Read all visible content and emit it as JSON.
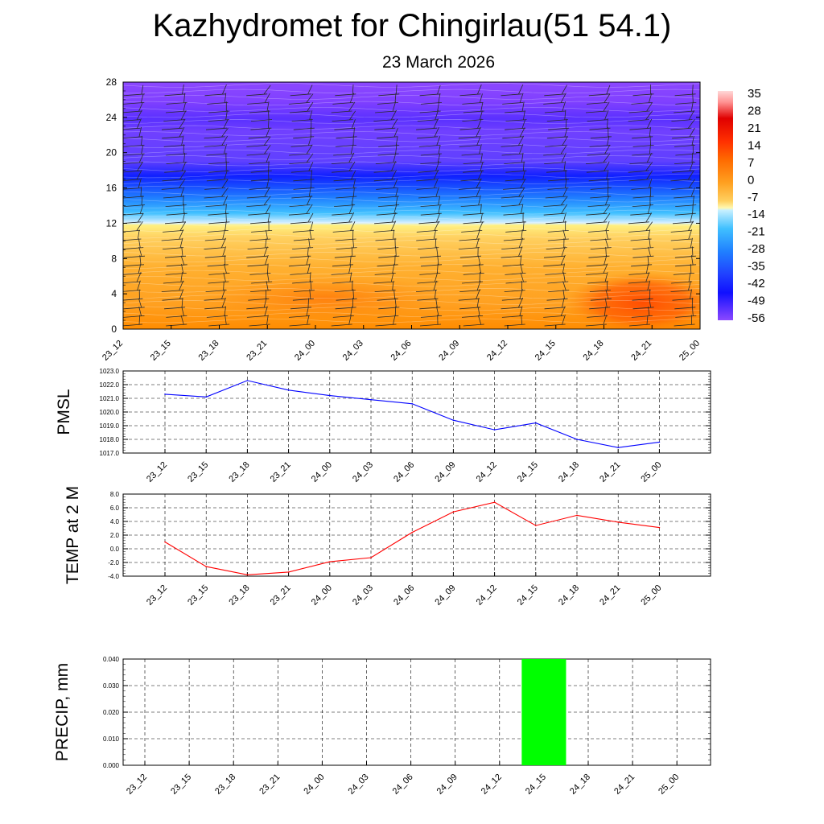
{
  "header": {
    "title": "Kazhydromet for Chingirlau(51 54.1)",
    "subtitle": "23 March 2026"
  },
  "chart_data": [
    {
      "type": "heatmap",
      "x_ticks": [
        "23_12",
        "23_15",
        "23_18",
        "23_21",
        "24_00",
        "24_03",
        "24_06",
        "24_09",
        "24_12",
        "24_15",
        "24_18",
        "24_21",
        "25_00"
      ],
      "y_ticks": [
        0,
        4,
        8,
        12,
        16,
        20,
        24,
        28
      ],
      "ylim": [
        0,
        28
      ],
      "colorbar_labels": [
        "35",
        "28",
        "21",
        "14",
        "7",
        "0",
        "-7",
        "-14",
        "-21",
        "-28",
        "-35",
        "-42",
        "-49",
        "-56"
      ],
      "wind_barbs": true,
      "colors": {
        "warm": "#ff9a10",
        "hot": "#ff5a00",
        "cold": "#1a2bff",
        "upper": "#8840ff"
      }
    },
    {
      "type": "line",
      "ylabel": "PMSL",
      "x": [
        "23_12",
        "23_15",
        "23_18",
        "23_21",
        "24_00",
        "24_03",
        "24_06",
        "24_09",
        "24_12",
        "24_15",
        "24_18",
        "24_21",
        "25_00"
      ],
      "values": [
        1021.3,
        1021.1,
        1022.3,
        1021.6,
        1021.2,
        1020.9,
        1020.6,
        1019.4,
        1018.7,
        1019.2,
        1018.0,
        1017.4,
        1017.8
      ],
      "ylim": [
        1017.0,
        1023.0
      ],
      "y_ticks": [
        "1017.0",
        "1018.0",
        "1019.0",
        "1020.0",
        "1021.0",
        "1022.0",
        "1023.0"
      ],
      "color": "#0000ff",
      "grid": true
    },
    {
      "type": "line",
      "ylabel": "TEMP at 2 M",
      "x": [
        "23_12",
        "23_15",
        "23_18",
        "23_21",
        "24_00",
        "24_03",
        "24_06",
        "24_09",
        "24_12",
        "24_15",
        "24_18",
        "24_21",
        "25_00"
      ],
      "values": [
        1.0,
        -2.6,
        -3.8,
        -3.4,
        -1.9,
        -1.3,
        2.4,
        5.4,
        6.8,
        3.4,
        4.9,
        3.9,
        3.1
      ],
      "ylim": [
        -4.0,
        8.0
      ],
      "y_ticks": [
        "-4.0",
        "-2.0",
        "0.0",
        "2.0",
        "4.0",
        "6.0",
        "8.0"
      ],
      "color": "#ff0000",
      "grid": true
    },
    {
      "type": "bar",
      "ylabel": "PRECIP, mm",
      "categories": [
        "23_12",
        "23_15",
        "23_18",
        "23_21",
        "24_00",
        "24_03",
        "24_06",
        "24_09",
        "24_12",
        "24_15",
        "24_18",
        "24_21",
        "25_00"
      ],
      "values": [
        0,
        0,
        0,
        0,
        0,
        0,
        0,
        0,
        0,
        0.04,
        0,
        0,
        0
      ],
      "ylim": [
        0,
        0.04
      ],
      "y_ticks": [
        "0.000",
        "0.010",
        "0.020",
        "0.030",
        "0.040"
      ],
      "color": "#00ff00",
      "grid": true
    }
  ]
}
